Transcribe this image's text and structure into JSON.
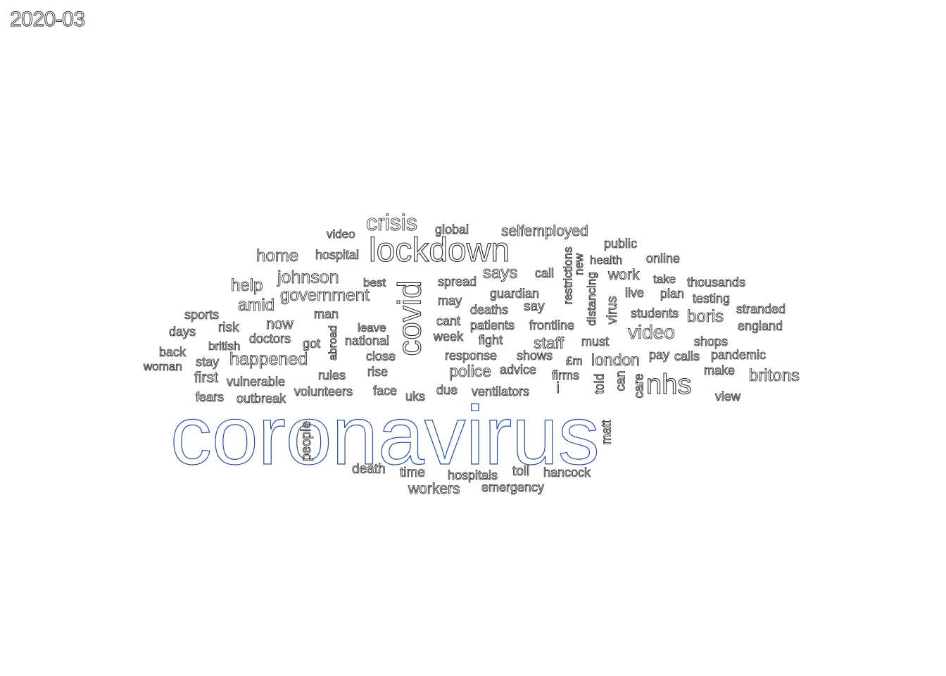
{
  "period": "2020-03",
  "style": {
    "background": "#ffffff",
    "word_outline": "#2b2b2b",
    "accent_outline": "#1f4fa8",
    "accent_outline_2": "#c46a1a"
  },
  "words": [
    {
      "text": "coronavirus",
      "weight": 100
    },
    {
      "text": "lockdown",
      "weight": 34
    },
    {
      "text": "covid",
      "weight": 32
    },
    {
      "text": "crisis",
      "weight": 22
    },
    {
      "text": "nhs",
      "weight": 24
    },
    {
      "text": "happened",
      "weight": 17
    },
    {
      "text": "johnson",
      "weight": 17
    },
    {
      "text": "government",
      "weight": 16
    },
    {
      "text": "video",
      "weight": 18
    },
    {
      "text": "says",
      "weight": 17
    },
    {
      "text": "home",
      "weight": 16
    },
    {
      "text": "help",
      "weight": 16
    },
    {
      "text": "amid",
      "weight": 16
    },
    {
      "text": "police",
      "weight": 15
    },
    {
      "text": "staff",
      "weight": 15
    },
    {
      "text": "london",
      "weight": 15
    },
    {
      "text": "boris",
      "weight": 16
    },
    {
      "text": "britons",
      "weight": 16
    },
    {
      "text": "selfemployed",
      "weight": 14
    },
    {
      "text": "work",
      "weight": 14
    },
    {
      "text": "workers",
      "weight": 14
    },
    {
      "text": "first",
      "weight": 13
    },
    {
      "text": "now",
      "weight": 14
    },
    {
      "text": "people",
      "weight": 13
    },
    {
      "text": "hospital",
      "weight": 12
    },
    {
      "text": "video",
      "weight": 11
    },
    {
      "text": "global",
      "weight": 11
    },
    {
      "text": "public",
      "weight": 11
    },
    {
      "text": "online",
      "weight": 11
    },
    {
      "text": "health",
      "weight": 11
    },
    {
      "text": "call",
      "weight": 11
    },
    {
      "text": "new",
      "weight": 11
    },
    {
      "text": "restrictions",
      "weight": 11
    },
    {
      "text": "distancing",
      "weight": 11
    },
    {
      "text": "virus",
      "weight": 12
    },
    {
      "text": "take",
      "weight": 11
    },
    {
      "text": "thousands",
      "weight": 11
    },
    {
      "text": "best",
      "weight": 11
    },
    {
      "text": "spread",
      "weight": 11
    },
    {
      "text": "guardian",
      "weight": 11
    },
    {
      "text": "live",
      "weight": 11
    },
    {
      "text": "plan",
      "weight": 11
    },
    {
      "text": "testing",
      "weight": 11
    },
    {
      "text": "may",
      "weight": 11
    },
    {
      "text": "deaths",
      "weight": 11
    },
    {
      "text": "say",
      "weight": 11
    },
    {
      "text": "students",
      "weight": 11
    },
    {
      "text": "stranded",
      "weight": 11
    },
    {
      "text": "sports",
      "weight": 11
    },
    {
      "text": "man",
      "weight": 11
    },
    {
      "text": "cant",
      "weight": 11
    },
    {
      "text": "patients",
      "weight": 11
    },
    {
      "text": "frontline",
      "weight": 11
    },
    {
      "text": "england",
      "weight": 11
    },
    {
      "text": "days",
      "weight": 11
    },
    {
      "text": "risk",
      "weight": 11
    },
    {
      "text": "leave",
      "weight": 11
    },
    {
      "text": "abroad",
      "weight": 11
    },
    {
      "text": "doctors",
      "weight": 11
    },
    {
      "text": "week",
      "weight": 11
    },
    {
      "text": "fight",
      "weight": 11
    },
    {
      "text": "must",
      "weight": 11
    },
    {
      "text": "shops",
      "weight": 11
    },
    {
      "text": "back",
      "weight": 11
    },
    {
      "text": "british",
      "weight": 11
    },
    {
      "text": "got",
      "weight": 11
    },
    {
      "text": "national",
      "weight": 11
    },
    {
      "text": "response",
      "weight": 11
    },
    {
      "text": "shows",
      "weight": 11
    },
    {
      "text": "pay",
      "weight": 11
    },
    {
      "text": "calls",
      "weight": 11
    },
    {
      "text": "pandemic",
      "weight": 11
    },
    {
      "text": "woman",
      "weight": 11
    },
    {
      "text": "stay",
      "weight": 11
    },
    {
      "text": "close",
      "weight": 11
    },
    {
      "text": "advice",
      "weight": 11
    },
    {
      "text": "£m",
      "weight": 11
    },
    {
      "text": "make",
      "weight": 11
    },
    {
      "text": "rules",
      "weight": 11
    },
    {
      "text": "rise",
      "weight": 11
    },
    {
      "text": "firms",
      "weight": 11
    },
    {
      "text": "vulnerable",
      "weight": 11
    },
    {
      "text": "volunteers",
      "weight": 11
    },
    {
      "text": "face",
      "weight": 11
    },
    {
      "text": "due",
      "weight": 11
    },
    {
      "text": "ventilators",
      "weight": 11
    },
    {
      "text": "told",
      "weight": 11
    },
    {
      "text": "can",
      "weight": 11
    },
    {
      "text": "care",
      "weight": 11
    },
    {
      "text": "fears",
      "weight": 11
    },
    {
      "text": "outbreak",
      "weight": 11
    },
    {
      "text": "uks",
      "weight": 11
    },
    {
      "text": "i",
      "weight": 14
    },
    {
      "text": "view",
      "weight": 11
    },
    {
      "text": "matt",
      "weight": 11
    },
    {
      "text": "death",
      "weight": 11
    },
    {
      "text": "time",
      "weight": 11
    },
    {
      "text": "toll",
      "weight": 11
    },
    {
      "text": "hancock",
      "weight": 11
    },
    {
      "text": "hospitals",
      "weight": 11
    },
    {
      "text": "emergency",
      "weight": 11
    }
  ]
}
